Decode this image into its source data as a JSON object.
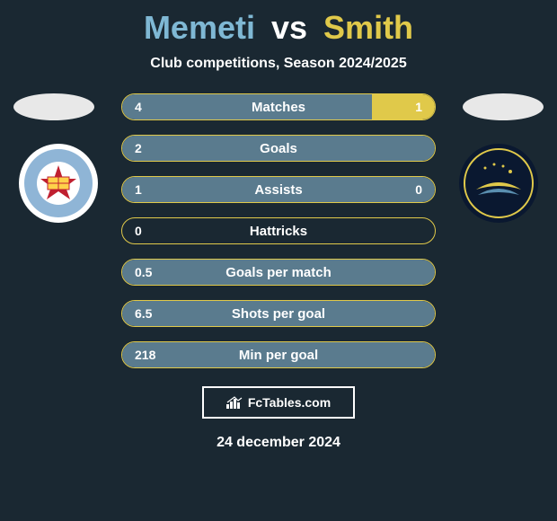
{
  "title": {
    "player1": "Memeti",
    "vs": "vs",
    "player2": "Smith"
  },
  "subtitle": "Club competitions, Season 2024/2025",
  "colors": {
    "p1_fill": "#5a7b8e",
    "p2_fill": "#e0c94a",
    "border": "#e0c94a",
    "bg": "#1a2832"
  },
  "crests": {
    "left": {
      "label": "MCFC"
    },
    "right": {
      "label": "MARINERS"
    }
  },
  "stats": [
    {
      "label": "Matches",
      "left_val": "4",
      "right_val": "1",
      "left_pct": 80,
      "right_pct": 20
    },
    {
      "label": "Goals",
      "left_val": "2",
      "right_val": "",
      "left_pct": 100,
      "right_pct": 0
    },
    {
      "label": "Assists",
      "left_val": "1",
      "right_val": "0",
      "left_pct": 100,
      "right_pct": 0
    },
    {
      "label": "Hattricks",
      "left_val": "0",
      "right_val": "",
      "left_pct": 0,
      "right_pct": 0
    },
    {
      "label": "Goals per match",
      "left_val": "0.5",
      "right_val": "",
      "left_pct": 100,
      "right_pct": 0
    },
    {
      "label": "Shots per goal",
      "left_val": "6.5",
      "right_val": "",
      "left_pct": 100,
      "right_pct": 0
    },
    {
      "label": "Min per goal",
      "left_val": "218",
      "right_val": "",
      "left_pct": 100,
      "right_pct": 0
    }
  ],
  "brand": "FcTables.com",
  "date": "24 december 2024"
}
